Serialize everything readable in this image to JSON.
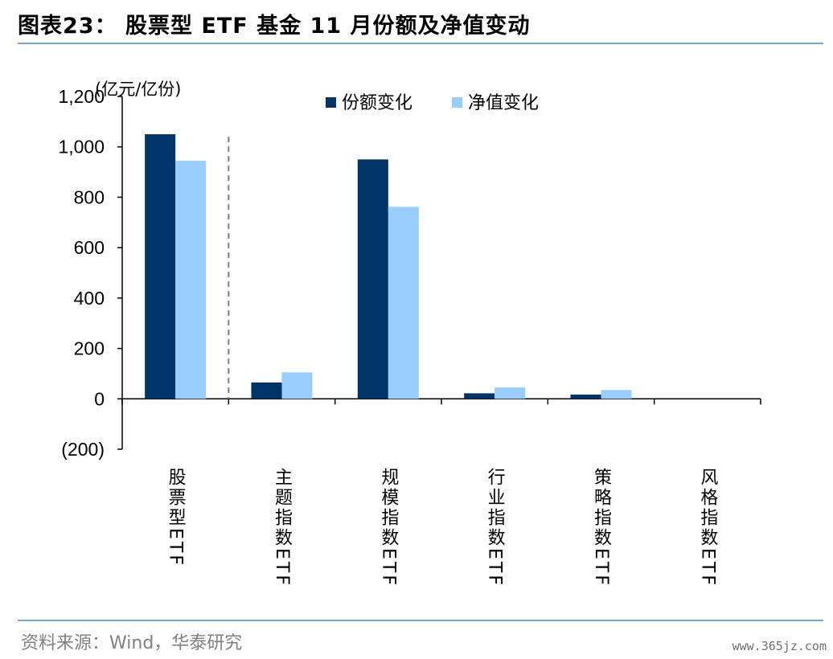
{
  "header": {
    "title": "图表23： 股票型 ETF 基金 11 月份额及净值变动"
  },
  "footer": {
    "source": "资料来源：Wind，华泰研究",
    "watermark": "www.365jz.com"
  },
  "chart_data": {
    "type": "bar",
    "unit_label": "(亿元/亿份)",
    "categories": [
      "股票型ETF",
      "主题指数ETF",
      "规模指数ETF",
      "行业指数ETF",
      "策略指数ETF",
      "风格指数ETF"
    ],
    "series": [
      {
        "name": "份额变化",
        "color": "#003366",
        "values": [
          1050,
          65,
          950,
          22,
          17,
          0
        ]
      },
      {
        "name": "净值变化",
        "color": "#99ccff",
        "values": [
          945,
          105,
          762,
          45,
          35,
          0
        ]
      }
    ],
    "ylim": [
      -200,
      1200
    ],
    "yticks": [
      -200,
      0,
      200,
      400,
      600,
      800,
      1000,
      1200
    ],
    "ytick_labels": [
      "(200)",
      "0",
      "200",
      "400",
      "600",
      "800",
      "1,000",
      "1,200"
    ],
    "legend_position": "top-center",
    "grid": false,
    "separator_after_category": "股票型ETF"
  }
}
